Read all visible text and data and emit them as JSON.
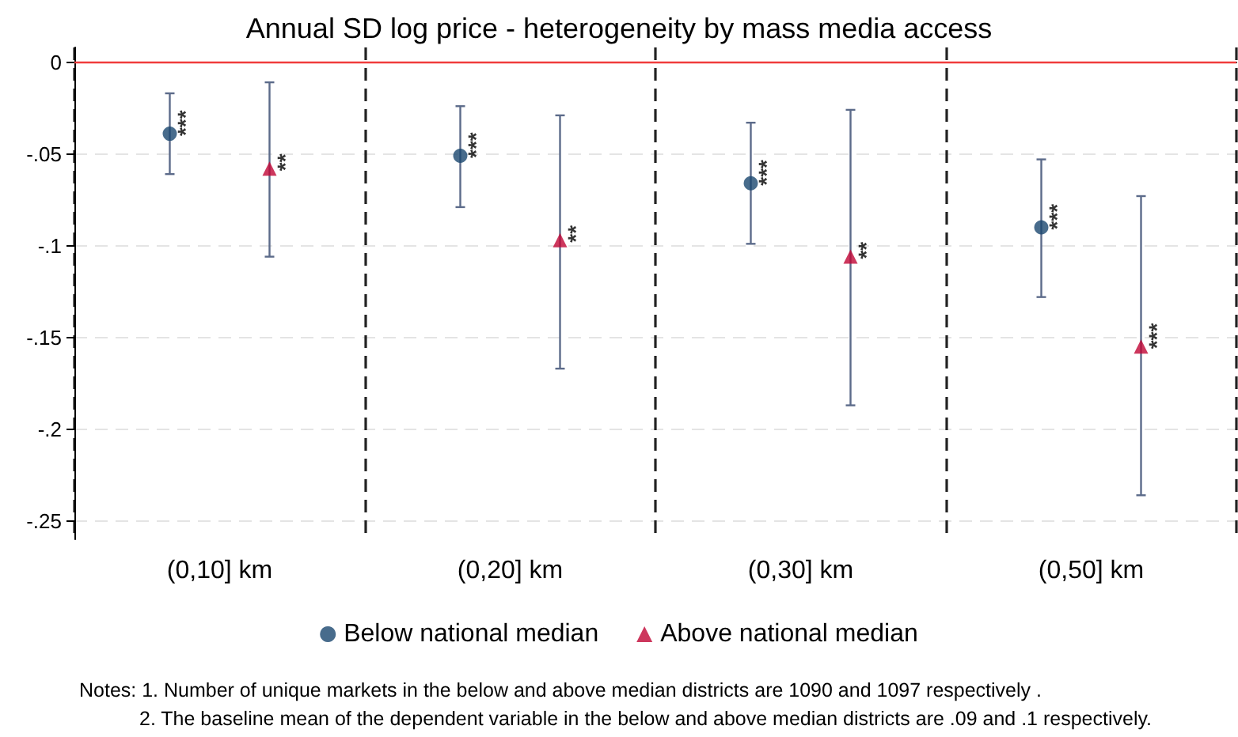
{
  "chart_data": {
    "type": "scatter",
    "title": "Annual SD log price - heterogeneity by mass media access",
    "categories": [
      "(0,10] km",
      "(0,20] km",
      "(0,30] km",
      "(0,50] km"
    ],
    "series": [
      {
        "name": "Below national median",
        "color": "#1a476f",
        "marker": "circle",
        "values": [
          -0.039,
          -0.051,
          -0.066,
          -0.09
        ],
        "value_labels": [
          "***",
          "***",
          "***",
          "***"
        ],
        "errors": [
          [
            -0.061,
            -0.017
          ],
          [
            -0.079,
            -0.024
          ],
          [
            -0.099,
            -0.033
          ],
          [
            -0.128,
            -0.053
          ]
        ]
      },
      {
        "name": "Above national median",
        "color": "#c10534",
        "marker": "triangle",
        "values": [
          -0.058,
          -0.097,
          -0.106,
          -0.155
        ],
        "value_labels": [
          "**",
          "**",
          "**",
          "***"
        ],
        "errors": [
          [
            -0.106,
            -0.011
          ],
          [
            -0.167,
            -0.029
          ],
          [
            -0.187,
            -0.026
          ],
          [
            -0.236,
            -0.073
          ]
        ]
      }
    ],
    "ylim": [
      -0.26,
      0.008
    ],
    "yticks": [
      {
        "value": -0.25,
        "label": "-.25"
      },
      {
        "value": -0.2,
        "label": "-.2"
      },
      {
        "value": -0.15,
        "label": "-.15"
      },
      {
        "value": -0.1,
        "label": "-.1"
      },
      {
        "value": -0.05,
        "label": "-.05"
      },
      0
    ],
    "ref_lines": [
      {
        "axis": "y",
        "value": 0,
        "color": "#f03c3c"
      }
    ],
    "grid": true,
    "legend": "bottom",
    "annotations": [
      "Notes: 1. Number of unique markets in the below and above median districts are 1090 and 1097 respectively .",
      "2. The baseline mean of the dependent variable in the below and above median districts are .09 and .1 respectively."
    ]
  }
}
